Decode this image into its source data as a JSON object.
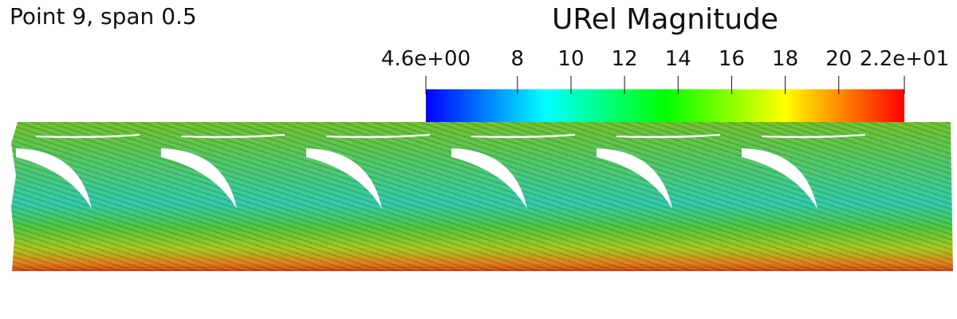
{
  "title": "Point 9, span 0.5",
  "colorbar": {
    "title": "URel Magnitude",
    "range": [
      4.58,
      22.45
    ],
    "ticks": [
      {
        "value": 4.58,
        "label": "4.6e+00"
      },
      8,
      10,
      12,
      14,
      16,
      18,
      20,
      {
        "value": 22.45,
        "label": "2.2e+01"
      }
    ],
    "colors": [
      "#0000ff",
      "#00ffff",
      "#00ff00",
      "#ffff00",
      "#ff0000"
    ]
  }
}
